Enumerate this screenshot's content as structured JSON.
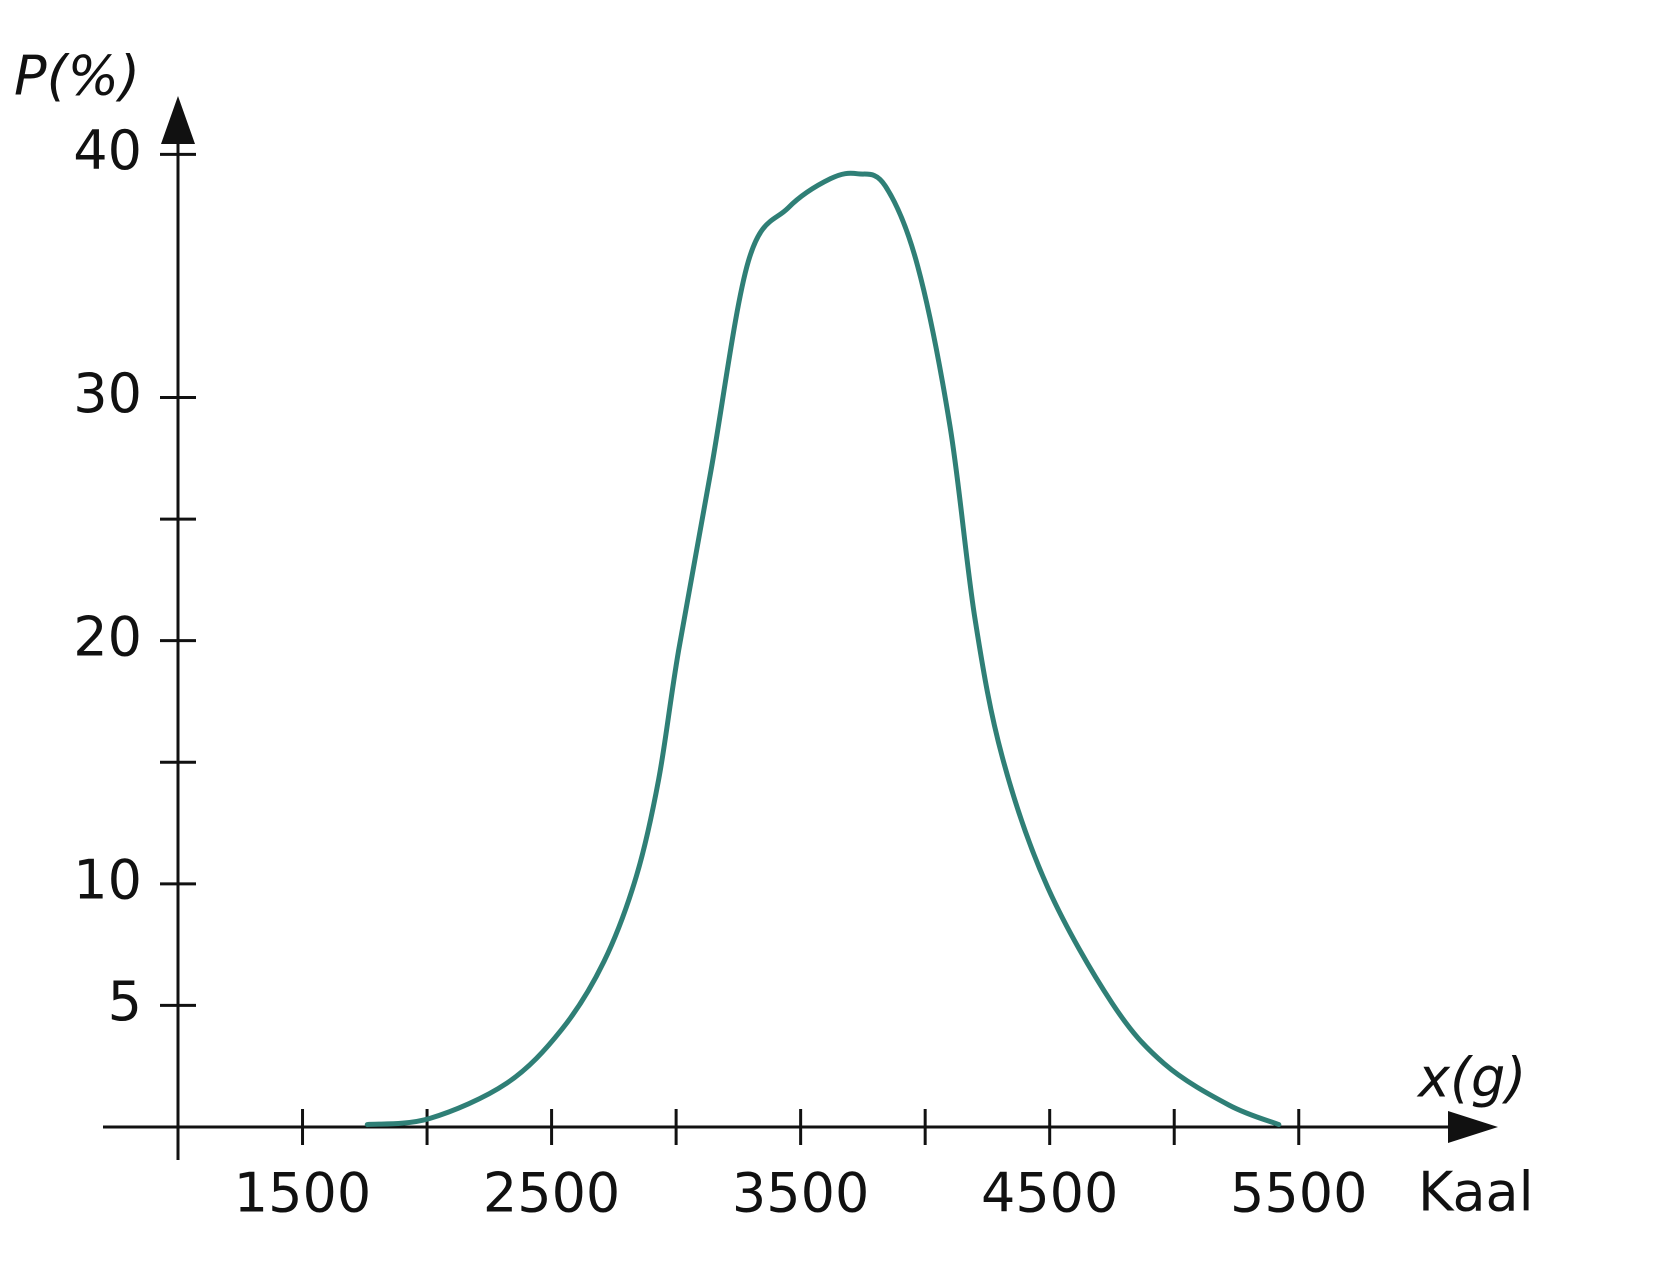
{
  "chart_data": {
    "type": "line",
    "ylabel": "P(%)",
    "xlabel": "x(g)",
    "xlabel_unit": "Kaal",
    "xlim": [
      1000,
      6300
    ],
    "ylim": [
      0,
      42.4
    ],
    "xticks": [
      1500,
      2000,
      2500,
      3000,
      3500,
      4000,
      4500,
      5000,
      5500
    ],
    "xticks_labeled": [
      1500,
      2500,
      3500,
      4500,
      5500
    ],
    "yticks": [
      5,
      10,
      20,
      30,
      40
    ],
    "yminor_ticks": [
      15,
      25
    ],
    "series": [
      {
        "color": "#2f7f76",
        "x": [
          1760,
          2010,
          2320,
          2540,
          2710,
          2840,
          2930,
          3010,
          3140,
          3290,
          3450,
          3620,
          3730,
          3840,
          3970,
          4100,
          4200,
          4310,
          4490,
          4750,
          4960,
          5220,
          5420
        ],
        "values": [
          0.1,
          0.35,
          1.8,
          4.0,
          6.8,
          10.3,
          14.3,
          19.6,
          27.0,
          35.6,
          37.8,
          39.0,
          39.2,
          38.7,
          35.4,
          28.8,
          20.9,
          15.2,
          9.9,
          5.1,
          2.6,
          0.9,
          0.1
        ]
      }
    ]
  }
}
